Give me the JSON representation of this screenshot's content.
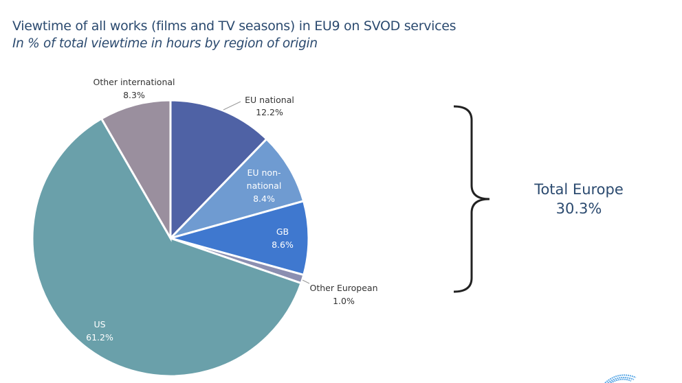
{
  "chart_data": {
    "type": "pie",
    "title": "Viewtime of all works (films and TV seasons) in EU9 on SVOD services",
    "subtitle": "In % of total viewtime in hours by region of origin",
    "start": "top, clockwise",
    "slices": [
      {
        "label": "EU national",
        "value": 12.2,
        "value_label": "12.2%",
        "color": "#4f62a5"
      },
      {
        "label": "EU non-national",
        "label_lines": [
          "EU non-",
          "national"
        ],
        "value": 8.4,
        "value_label": "8.4%",
        "color": "#6f9bd1"
      },
      {
        "label": "GB",
        "value": 8.6,
        "value_label": "8.6%",
        "color": "#3f78cf"
      },
      {
        "label": "Other European",
        "value": 1.0,
        "value_label": "1.0%",
        "color": "#8b8fb1"
      },
      {
        "label": "US",
        "value": 61.2,
        "value_label": "61.2%",
        "color": "#6aa0aa"
      },
      {
        "label": "Other international",
        "value": 8.3,
        "value_label": "8.3%",
        "color": "#9a8f9e"
      }
    ],
    "annotation": {
      "label": "Total Europe",
      "value_label": "30.3%"
    }
  }
}
